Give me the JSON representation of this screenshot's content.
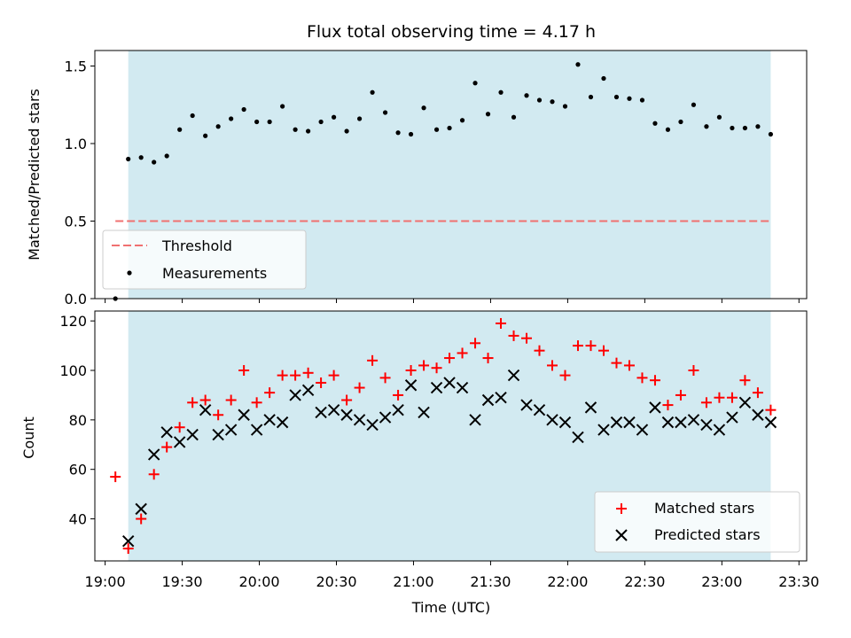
{
  "colors": {
    "shade": "#add8e6",
    "threshold": "#f07070",
    "matched": "#ff0000",
    "predicted": "#000000",
    "measurement": "#000000"
  },
  "chart_data": [
    {
      "type": "scatter",
      "title": "Flux total observing time = 4.17 h",
      "xlabel": "",
      "ylabel": "Matched/Predicted stars",
      "xlim": [
        "18:56",
        "23:33"
      ],
      "ylim": [
        0,
        1.6
      ],
      "yticks": [
        0.0,
        0.5,
        1.0,
        1.5
      ],
      "ytick_labels": [
        "0.0",
        "0.5",
        "1.0",
        "1.5"
      ],
      "shaded_interval": [
        "19:09",
        "23:19"
      ],
      "threshold": 0.5,
      "legend_position": "lower-left",
      "legend": {
        "threshold": "Threshold",
        "measurements": "Measurements"
      },
      "series": [
        {
          "name": "Measurements",
          "x": [
            "19:04",
            "19:09",
            "19:14",
            "19:19",
            "19:24",
            "19:29",
            "19:34",
            "19:39",
            "19:44",
            "19:49",
            "19:54",
            "19:59",
            "20:04",
            "20:09",
            "20:14",
            "20:19",
            "20:24",
            "20:29",
            "20:34",
            "20:39",
            "20:44",
            "20:49",
            "20:54",
            "20:59",
            "21:04",
            "21:09",
            "21:14",
            "21:19",
            "21:24",
            "21:29",
            "21:34",
            "21:39",
            "21:44",
            "21:49",
            "21:54",
            "21:59",
            "22:04",
            "22:09",
            "22:14",
            "22:19",
            "22:24",
            "22:29",
            "22:34",
            "22:39",
            "22:44",
            "22:49",
            "22:54",
            "22:59",
            "23:04",
            "23:09",
            "23:14",
            "23:19"
          ],
          "y": [
            0.0,
            0.9,
            0.91,
            0.88,
            0.92,
            1.09,
            1.18,
            1.05,
            1.11,
            1.16,
            1.22,
            1.14,
            1.14,
            1.24,
            1.09,
            1.08,
            1.14,
            1.17,
            1.08,
            1.16,
            1.33,
            1.2,
            1.07,
            1.06,
            1.23,
            1.09,
            1.1,
            1.15,
            1.39,
            1.19,
            1.33,
            1.17,
            1.31,
            1.28,
            1.27,
            1.24,
            1.51,
            1.3,
            1.42,
            1.3,
            1.29,
            1.28,
            1.13,
            1.09,
            1.14,
            1.25,
            1.11,
            1.17,
            1.1,
            1.1,
            1.11,
            1.06
          ]
        }
      ]
    },
    {
      "type": "scatter",
      "title": "",
      "xlabel": "Time (UTC)",
      "ylabel": "Count",
      "xlim": [
        "18:56",
        "23:33"
      ],
      "ylim": [
        23,
        124
      ],
      "yticks": [
        40,
        60,
        80,
        100,
        120
      ],
      "ytick_labels": [
        "40",
        "60",
        "80",
        "100",
        "120"
      ],
      "xticks": [
        "19:00",
        "19:30",
        "20:00",
        "20:30",
        "21:00",
        "21:30",
        "22:00",
        "22:30",
        "23:00",
        "23:30"
      ],
      "xtick_labels": [
        "19:00",
        "19:30",
        "20:00",
        "20:30",
        "21:00",
        "21:30",
        "22:00",
        "22:30",
        "23:00",
        "23:30"
      ],
      "shaded_interval": [
        "19:09",
        "23:19"
      ],
      "legend_position": "lower-right",
      "x": [
        "19:04",
        "19:09",
        "19:14",
        "19:19",
        "19:24",
        "19:29",
        "19:34",
        "19:39",
        "19:44",
        "19:49",
        "19:54",
        "19:59",
        "20:04",
        "20:09",
        "20:14",
        "20:19",
        "20:24",
        "20:29",
        "20:34",
        "20:39",
        "20:44",
        "20:49",
        "20:54",
        "20:59",
        "21:04",
        "21:09",
        "21:14",
        "21:19",
        "21:24",
        "21:29",
        "21:34",
        "21:39",
        "21:44",
        "21:49",
        "21:54",
        "21:59",
        "22:04",
        "22:09",
        "22:14",
        "22:19",
        "22:24",
        "22:29",
        "22:34",
        "22:39",
        "22:44",
        "22:49",
        "22:54",
        "22:59",
        "23:04",
        "23:09",
        "23:14",
        "23:19"
      ],
      "series": [
        {
          "name": "Matched stars",
          "x": [
            "19:04",
            "19:09",
            "19:14",
            "19:19",
            "19:24",
            "19:29",
            "19:34",
            "19:39",
            "19:44",
            "19:49",
            "19:54",
            "19:59",
            "20:04",
            "20:09",
            "20:14",
            "20:19",
            "20:24",
            "20:29",
            "20:34",
            "20:39",
            "20:44",
            "20:49",
            "20:54",
            "20:59",
            "21:04",
            "21:09",
            "21:14",
            "21:19",
            "21:24",
            "21:29",
            "21:34",
            "21:39",
            "21:44",
            "21:49",
            "21:54",
            "21:59",
            "22:04",
            "22:09",
            "22:14",
            "22:19",
            "22:24",
            "22:29",
            "22:34",
            "22:39",
            "22:44",
            "22:49",
            "22:54",
            "22:59",
            "23:04",
            "23:09",
            "23:14",
            "23:19"
          ],
          "values": [
            57,
            28,
            40,
            58,
            69,
            77,
            87,
            88,
            82,
            88,
            100,
            87,
            91,
            98,
            98,
            99,
            95,
            98,
            88,
            93,
            104,
            97,
            90,
            100,
            102,
            101,
            105,
            107,
            111,
            105,
            119,
            114,
            113,
            108,
            102,
            98,
            110,
            110,
            108,
            103,
            102,
            97,
            96,
            86,
            90,
            100,
            87,
            89,
            89,
            96,
            91,
            84
          ]
        },
        {
          "name": "Predicted stars",
          "x": [
            "19:09",
            "19:14",
            "19:19",
            "19:24",
            "19:29",
            "19:34",
            "19:39",
            "19:44",
            "19:49",
            "19:54",
            "19:59",
            "20:04",
            "20:09",
            "20:14",
            "20:19",
            "20:24",
            "20:29",
            "20:34",
            "20:39",
            "20:44",
            "20:49",
            "20:54",
            "20:59",
            "21:04",
            "21:09",
            "21:14",
            "21:19",
            "21:24",
            "21:29",
            "21:34",
            "21:39",
            "21:44",
            "21:49",
            "21:54",
            "21:59",
            "22:04",
            "22:09",
            "22:14",
            "22:19",
            "22:24",
            "22:29",
            "22:34",
            "22:39",
            "22:44",
            "22:49",
            "22:54",
            "22:59",
            "23:04",
            "23:09",
            "23:14",
            "23:19"
          ],
          "values": [
            31,
            44,
            66,
            75,
            71,
            74,
            84,
            74,
            76,
            82,
            76,
            80,
            79,
            90,
            92,
            83,
            84,
            82,
            80,
            78,
            81,
            84,
            94,
            83,
            93,
            95,
            93,
            80,
            88,
            89,
            98,
            86,
            84,
            80,
            79,
            73,
            85,
            76,
            79,
            79,
            76,
            85,
            79,
            79,
            80,
            78,
            76,
            81,
            87,
            82,
            79
          ]
        }
      ]
    }
  ]
}
